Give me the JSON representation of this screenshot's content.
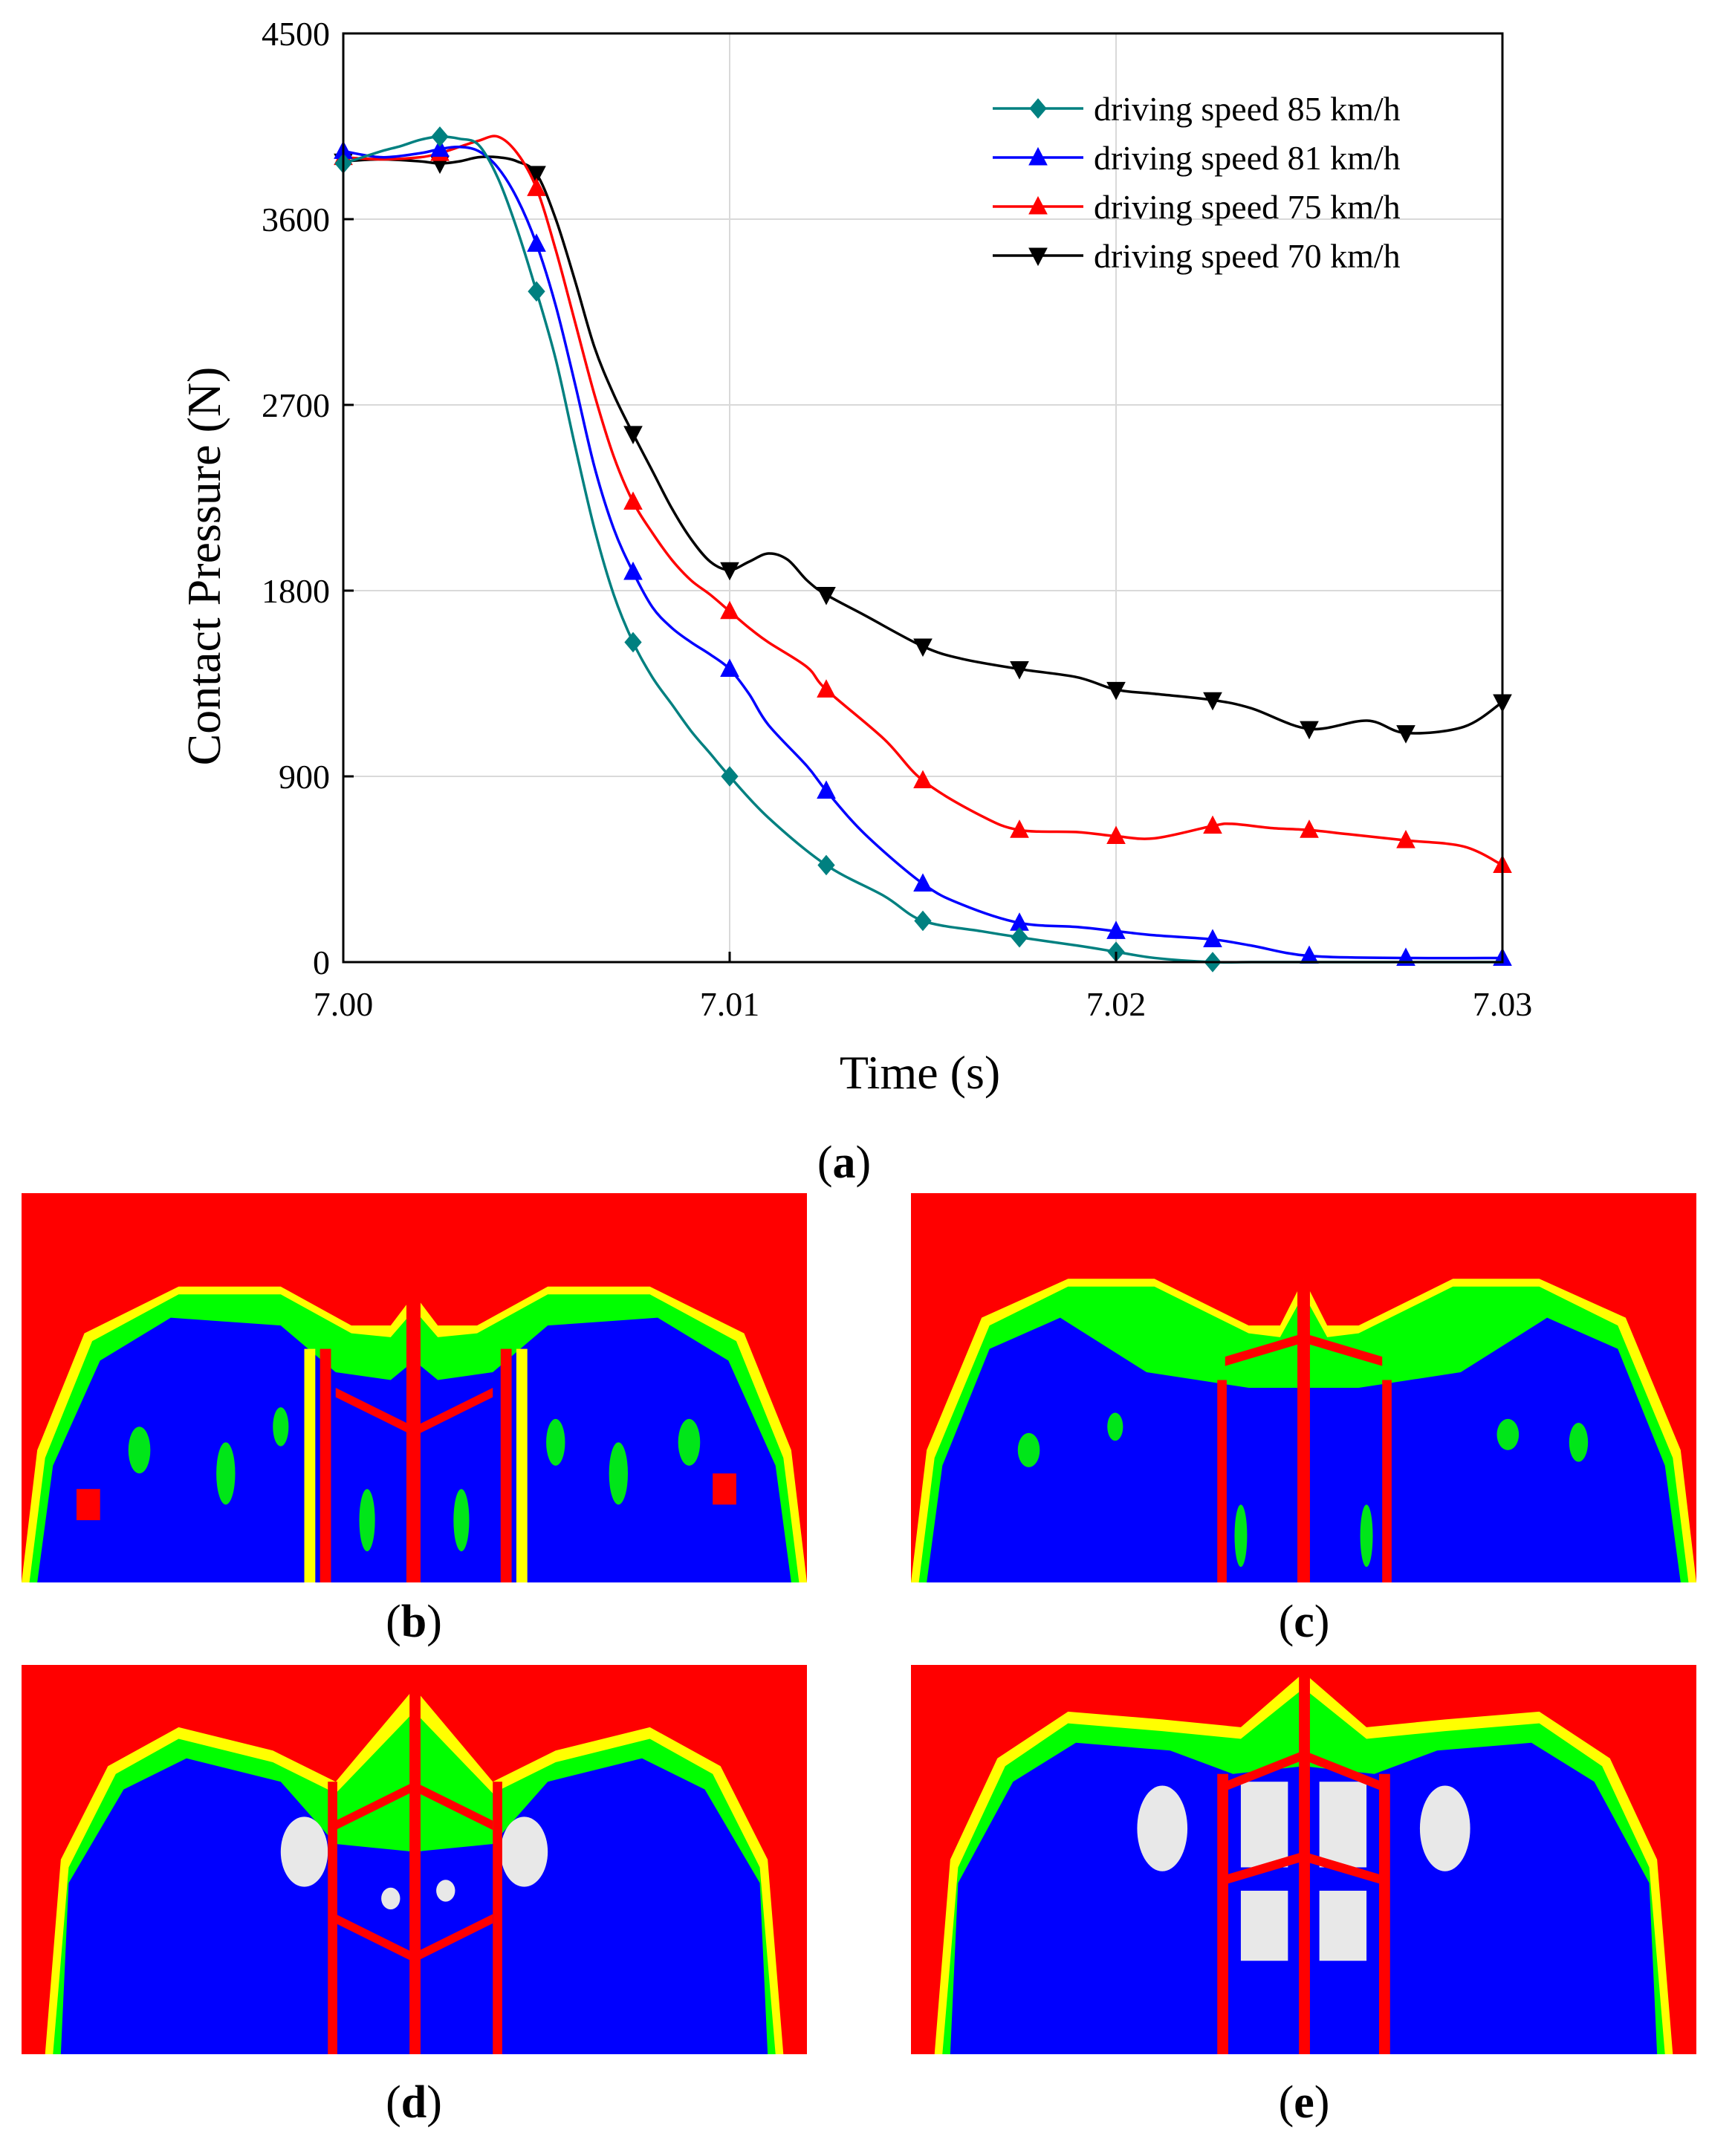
{
  "chart_data": {
    "type": "line",
    "title": "",
    "xlabel": "Time (s)",
    "ylabel": "Contact Pressure (N)",
    "xlim": [
      7.0,
      7.03
    ],
    "ylim": [
      0,
      4500
    ],
    "xticks": [
      7.0,
      7.01,
      7.02,
      7.03
    ],
    "xtick_labels": [
      "7.00",
      "7.01",
      "7.02",
      "7.03"
    ],
    "yticks": [
      0,
      900,
      1800,
      2700,
      3600,
      4500
    ],
    "ytick_labels": [
      "0",
      "900",
      "1800",
      "2700",
      "3600",
      "4500"
    ],
    "grid": true,
    "legend_position": "top-right",
    "series": [
      {
        "name": "driving speed 85 km/h",
        "color": "#008080",
        "marker": "diamond",
        "x": [
          7.0,
          7.0005,
          7.001,
          7.0015,
          7.002,
          7.0025,
          7.003,
          7.0035,
          7.004,
          7.0045,
          7.005,
          7.0055,
          7.006,
          7.0065,
          7.007,
          7.0075,
          7.008,
          7.0085,
          7.009,
          7.0095,
          7.01,
          7.011,
          7.0125,
          7.014,
          7.015,
          7.0165,
          7.0175,
          7.019,
          7.02,
          7.021,
          7.0225,
          7.0235,
          7.025,
          7.0275,
          7.03
        ],
        "y": [
          3870,
          3900,
          3930,
          3955,
          3985,
          4000,
          3990,
          3960,
          3800,
          3550,
          3250,
          2920,
          2500,
          2100,
          1780,
          1550,
          1380,
          1250,
          1120,
          1010,
          900,
          700,
          470,
          320,
          200,
          150,
          120,
          80,
          50,
          20,
          0,
          0,
          0,
          0,
          0
        ],
        "marker_x": [
          7.0,
          7.0025,
          7.005,
          7.0075,
          7.01,
          7.0125,
          7.015,
          7.0175,
          7.02,
          7.0225
        ],
        "marker_y": [
          3870,
          4000,
          3250,
          1550,
          900,
          470,
          200,
          120,
          50,
          0
        ]
      },
      {
        "name": "driving speed 81 km/h",
        "color": "#0000ff",
        "marker": "triangle-up",
        "x": [
          7.0,
          7.001,
          7.002,
          7.0025,
          7.003,
          7.0035,
          7.004,
          7.0045,
          7.005,
          7.0055,
          7.006,
          7.0065,
          7.007,
          7.0075,
          7.008,
          7.0085,
          7.009,
          7.0095,
          7.01,
          7.0105,
          7.011,
          7.012,
          7.0125,
          7.0135,
          7.015,
          7.016,
          7.0175,
          7.019,
          7.02,
          7.021,
          7.0225,
          7.0235,
          7.025,
          7.0275,
          7.03
        ],
        "y": [
          3930,
          3900,
          3920,
          3940,
          3950,
          3930,
          3850,
          3700,
          3480,
          3180,
          2800,
          2400,
          2100,
          1890,
          1720,
          1620,
          1550,
          1490,
          1420,
          1300,
          1150,
          950,
          830,
          620,
          380,
          280,
          190,
          170,
          150,
          130,
          110,
          80,
          30,
          20,
          20
        ],
        "marker_x": [
          7.0,
          7.0025,
          7.005,
          7.0075,
          7.01,
          7.0125,
          7.015,
          7.0175,
          7.02,
          7.0225,
          7.025,
          7.0275,
          7.03
        ],
        "marker_y": [
          3930,
          3940,
          3480,
          1890,
          1420,
          830,
          380,
          190,
          150,
          110,
          30,
          20,
          20
        ]
      },
      {
        "name": "driving speed 75 km/h",
        "color": "#ff0000",
        "marker": "triangle-up",
        "x": [
          7.0,
          7.001,
          7.002,
          7.0025,
          7.003,
          7.0035,
          7.004,
          7.0045,
          7.005,
          7.0055,
          7.006,
          7.0065,
          7.007,
          7.0075,
          7.008,
          7.0085,
          7.009,
          7.0095,
          7.01,
          7.0105,
          7.011,
          7.012,
          7.0125,
          7.014,
          7.015,
          7.0165,
          7.0175,
          7.019,
          7.02,
          7.021,
          7.0225,
          7.023,
          7.024,
          7.025,
          7.026,
          7.0275,
          7.029,
          7.03
        ],
        "y": [
          3900,
          3890,
          3900,
          3920,
          3950,
          3980,
          4000,
          3920,
          3750,
          3450,
          3100,
          2750,
          2450,
          2230,
          2080,
          1950,
          1850,
          1780,
          1700,
          1620,
          1550,
          1430,
          1320,
          1080,
          880,
          710,
          640,
          630,
          610,
          600,
          660,
          670,
          650,
          640,
          620,
          590,
          560,
          470
        ],
        "marker_x": [
          7.0,
          7.0025,
          7.005,
          7.0075,
          7.01,
          7.0125,
          7.015,
          7.0175,
          7.02,
          7.0225,
          7.025,
          7.0275,
          7.03
        ],
        "marker_y": [
          3900,
          3920,
          3750,
          2230,
          1700,
          1320,
          880,
          640,
          610,
          660,
          640,
          590,
          470
        ]
      },
      {
        "name": "driving speed 70 km/h",
        "color": "#000000",
        "marker": "triangle-down",
        "x": [
          7.0,
          7.001,
          7.002,
          7.0025,
          7.003,
          7.0035,
          7.004,
          7.0045,
          7.005,
          7.0055,
          7.006,
          7.0065,
          7.007,
          7.0075,
          7.008,
          7.0085,
          7.009,
          7.0095,
          7.01,
          7.0105,
          7.011,
          7.0115,
          7.012,
          7.0125,
          7.0135,
          7.015,
          7.016,
          7.0175,
          7.019,
          7.02,
          7.021,
          7.0225,
          7.0235,
          7.025,
          7.0265,
          7.0275,
          7.029,
          7.03
        ],
        "y": [
          3880,
          3890,
          3880,
          3870,
          3880,
          3900,
          3900,
          3880,
          3820,
          3600,
          3300,
          2980,
          2750,
          2560,
          2380,
          2200,
          2050,
          1940,
          1900,
          1940,
          1980,
          1950,
          1850,
          1780,
          1680,
          1530,
          1470,
          1420,
          1380,
          1320,
          1300,
          1270,
          1230,
          1130,
          1170,
          1110,
          1140,
          1260
        ],
        "marker_x": [
          7.0,
          7.0025,
          7.005,
          7.0075,
          7.01,
          7.0125,
          7.015,
          7.0175,
          7.02,
          7.0225,
          7.025,
          7.0275,
          7.03
        ],
        "marker_y": [
          3880,
          3870,
          3820,
          2560,
          1900,
          1780,
          1530,
          1420,
          1320,
          1270,
          1130,
          1110,
          1260
        ]
      }
    ]
  },
  "panels": {
    "a": "a",
    "b": "b",
    "c": "c",
    "d": "d",
    "e": "e"
  },
  "colors": {
    "red": "#ff0000",
    "blue": "#0000ff",
    "green": "#00ff00",
    "yellow": "#ffff00",
    "orange": "#ff8000",
    "cyan": "#00c8ff",
    "white": "#e8e8e8",
    "grid": "#d9d9d9"
  }
}
